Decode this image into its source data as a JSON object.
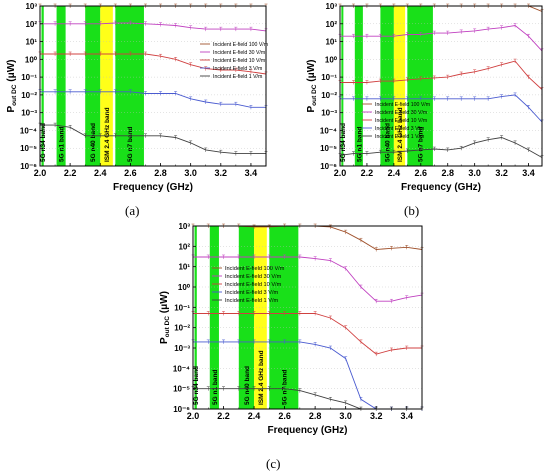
{
  "chart_data": [
    {
      "panel": "(a)",
      "type": "line",
      "xlabel": "Frequency (GHz)",
      "ylabel_main": "P",
      "ylabel_sub": "out DC",
      "ylabel_unit": "(μW)",
      "xlim": [
        2.0,
        3.5
      ],
      "ylim_log10": [
        -6,
        3
      ],
      "x_ticks": [
        "2.0",
        "2.2",
        "2.4",
        "2.6",
        "2.8",
        "3.0",
        "3.2",
        "3.4"
      ],
      "y_ticks": [
        "10⁻⁶",
        "10⁻⁵",
        "10⁻⁴",
        "10⁻³",
        "10⁻²",
        "10⁻¹",
        "10⁰",
        "10¹",
        "10²",
        "10³"
      ],
      "bands": [
        {
          "label": "5G n34 band",
          "x0": 2.01,
          "x1": 2.025,
          "color": "green"
        },
        {
          "label": "5G n1 band",
          "x0": 2.11,
          "x1": 2.17,
          "color": "green"
        },
        {
          "label": "5G n40 band",
          "x0": 2.3,
          "x1": 2.4,
          "color": "green"
        },
        {
          "label": "ISM 2.4 GHz band",
          "x0": 2.4,
          "x1": 2.4835,
          "color": "yellow"
        },
        {
          "label": "5G n7 band",
          "x0": 2.5,
          "x1": 2.69,
          "color": "green"
        }
      ],
      "x": [
        2.0,
        2.1,
        2.2,
        2.3,
        2.4,
        2.5,
        2.6,
        2.7,
        2.8,
        2.9,
        3.0,
        3.1,
        3.2,
        3.3,
        3.4,
        3.5
      ],
      "series": [
        {
          "name": "Incident E-field 100 V/m",
          "color": "#a0522d",
          "values": [
            1500,
            1500,
            1500,
            1500,
            1500,
            1500,
            1500,
            1500,
            1500,
            1500,
            1300,
            1200,
            1200,
            1200,
            1100,
            1000
          ]
        },
        {
          "name": "Incident E-field 30 V/m",
          "color": "#c040c0",
          "values": [
            100,
            100,
            100,
            100,
            100,
            110,
            110,
            100,
            90,
            80,
            60,
            50,
            50,
            50,
            50,
            40
          ]
        },
        {
          "name": "Incident E-field 10 V/m",
          "color": "#d04040",
          "values": [
            2,
            2,
            2,
            2,
            2,
            2,
            2,
            2,
            1.5,
            1,
            0.5,
            0.3,
            0.25,
            0.25,
            0.2,
            0.15
          ]
        },
        {
          "name": "Incident E-field 3 V/m",
          "color": "#4a5bd0",
          "values": [
            0.015,
            0.015,
            0.015,
            0.015,
            0.015,
            0.015,
            0.015,
            0.012,
            0.012,
            0.012,
            0.006,
            0.004,
            0.003,
            0.003,
            0.002,
            0.002
          ]
        },
        {
          "name": "Incident E-field 1 V/m",
          "color": "#404040",
          "values": [
            0.0002,
            0.0002,
            0.00015,
            5e-05,
            5e-05,
            5e-05,
            5e-05,
            5e-05,
            5e-05,
            4e-05,
            2e-05,
            8e-06,
            6e-06,
            5e-06,
            5e-06,
            5e-06
          ]
        }
      ]
    },
    {
      "panel": "(b)",
      "type": "line",
      "xlabel": "Frequency (GHz)",
      "ylabel_main": "P",
      "ylabel_sub": "out DC",
      "ylabel_unit": "(μW)",
      "xlim": [
        2.0,
        3.5
      ],
      "ylim_log10": [
        -6,
        3
      ],
      "x_ticks": [
        "2.0",
        "2.2",
        "2.4",
        "2.6",
        "2.8",
        "3.0",
        "3.2",
        "3.4"
      ],
      "y_ticks": [
        "10⁻⁶",
        "10⁻⁵",
        "10⁻⁴",
        "10⁻³",
        "10⁻²",
        "10⁻¹",
        "10⁰",
        "10¹",
        "10²",
        "10³"
      ],
      "bands": [
        {
          "label": "5G n34 band",
          "x0": 2.01,
          "x1": 2.025,
          "color": "green"
        },
        {
          "label": "5G n1 band",
          "x0": 2.11,
          "x1": 2.17,
          "color": "green"
        },
        {
          "label": "5G n40 band",
          "x0": 2.3,
          "x1": 2.4,
          "color": "green"
        },
        {
          "label": "ISM 2.4 GHz band",
          "x0": 2.4,
          "x1": 2.4835,
          "color": "yellow"
        },
        {
          "label": "5G n7 band",
          "x0": 2.5,
          "x1": 2.69,
          "color": "green"
        }
      ],
      "x": [
        2.0,
        2.1,
        2.2,
        2.3,
        2.4,
        2.5,
        2.6,
        2.7,
        2.8,
        2.9,
        3.0,
        3.1,
        3.2,
        3.3,
        3.4,
        3.5
      ],
      "series": [
        {
          "name": "Incident E-field 100 V/m",
          "color": "#a0522d",
          "values": [
            2000,
            2000,
            2000,
            2000,
            2000,
            2000,
            2000,
            2000,
            2000,
            2000,
            2000,
            2000,
            2000,
            2000,
            1500,
            500
          ]
        },
        {
          "name": "Incident E-field 30 V/m",
          "color": "#c040c0",
          "values": [
            20,
            20,
            20,
            20,
            20,
            25,
            25,
            30,
            30,
            35,
            40,
            50,
            60,
            80,
            20,
            3
          ]
        },
        {
          "name": "Incident E-field 10 V/m",
          "color": "#d04040",
          "values": [
            0.05,
            0.05,
            0.05,
            0.06,
            0.06,
            0.07,
            0.08,
            0.09,
            0.1,
            0.15,
            0.2,
            0.3,
            0.5,
            0.8,
            0.1,
            0.02
          ]
        },
        {
          "name": "Incident E-field 3 V/m",
          "color": "#4a5bd0",
          "values": [
            0.006,
            0.006,
            0.006,
            0.006,
            0.006,
            0.006,
            0.006,
            0.006,
            0.006,
            0.006,
            0.006,
            0.006,
            0.008,
            0.01,
            0.002,
            0.0003
          ]
        },
        {
          "name": "Incident E-field 1 V/m",
          "color": "#404040",
          "values": [
            4e-06,
            5e-06,
            5e-06,
            6e-06,
            6e-06,
            7e-06,
            8e-06,
            9e-06,
            8e-06,
            1e-05,
            2e-05,
            3e-05,
            4e-05,
            2e-05,
            8e-06,
            3e-06
          ]
        }
      ]
    },
    {
      "panel": "(c)",
      "type": "line",
      "xlabel": "Frequency (GHz)",
      "ylabel_main": "P",
      "ylabel_sub": "out DC",
      "ylabel_unit": "(μW)",
      "xlim": [
        2.0,
        3.5
      ],
      "ylim_log10": [
        -6,
        3
      ],
      "x_ticks": [
        "2.0",
        "2.2",
        "2.4",
        "2.6",
        "2.8",
        "3.0",
        "3.2",
        "3.4"
      ],
      "y_ticks": [
        "10⁻⁶",
        "10⁻⁵",
        "10⁻⁴",
        "10⁻³",
        "10⁻²",
        "10⁻¹",
        "10⁰",
        "10¹",
        "10²",
        "10³"
      ],
      "bands": [
        {
          "label": "5G n34 band",
          "x0": 2.01,
          "x1": 2.025,
          "color": "green"
        },
        {
          "label": "5G n1 band",
          "x0": 2.11,
          "x1": 2.17,
          "color": "green"
        },
        {
          "label": "5G n40 band",
          "x0": 2.3,
          "x1": 2.4,
          "color": "green"
        },
        {
          "label": "ISM 2.4 GHz band",
          "x0": 2.4,
          "x1": 2.4835,
          "color": "yellow"
        },
        {
          "label": "5G n7 band",
          "x0": 2.5,
          "x1": 2.69,
          "color": "green"
        }
      ],
      "x": [
        2.0,
        2.1,
        2.2,
        2.3,
        2.4,
        2.5,
        2.6,
        2.7,
        2.8,
        2.9,
        3.0,
        3.1,
        3.2,
        3.3,
        3.4,
        3.5
      ],
      "series": [
        {
          "name": "Incident E-field 100 V/m",
          "color": "#a0522d",
          "values": [
            1000,
            1000,
            1000,
            1000,
            900,
            900,
            1000,
            1000,
            1000,
            900,
            500,
            200,
            70,
            80,
            90,
            70
          ]
        },
        {
          "name": "Incident E-field 30 V/m",
          "color": "#c040c0",
          "values": [
            30,
            30,
            30,
            30,
            30,
            30,
            30,
            30,
            25,
            20,
            8,
            1,
            0.2,
            0.2,
            0.3,
            0.4
          ]
        },
        {
          "name": "Incident E-field 10 V/m",
          "color": "#d04040",
          "values": [
            0.05,
            0.05,
            0.05,
            0.05,
            0.05,
            0.05,
            0.05,
            0.05,
            0.05,
            0.03,
            0.01,
            0.002,
            0.0005,
            0.0008,
            0.001,
            0.001
          ]
        },
        {
          "name": "Incident E-field 3 V/m",
          "color": "#4a5bd0",
          "values": [
            0.002,
            0.002,
            0.002,
            0.002,
            0.002,
            0.002,
            0.002,
            0.002,
            0.0015,
            0.001,
            0.0003,
            3e-06,
            1e-06,
            1e-06,
            1e-06,
            1e-06
          ]
        },
        {
          "name": "Incident E-field 1 V/m",
          "color": "#404040",
          "values": [
            1e-05,
            1e-05,
            1e-05,
            1e-05,
            1e-05,
            1e-05,
            1e-05,
            8e-06,
            5e-06,
            3e-06,
            2e-06,
            1e-06,
            1e-06,
            1e-06,
            1e-06,
            1e-06
          ]
        }
      ]
    }
  ]
}
